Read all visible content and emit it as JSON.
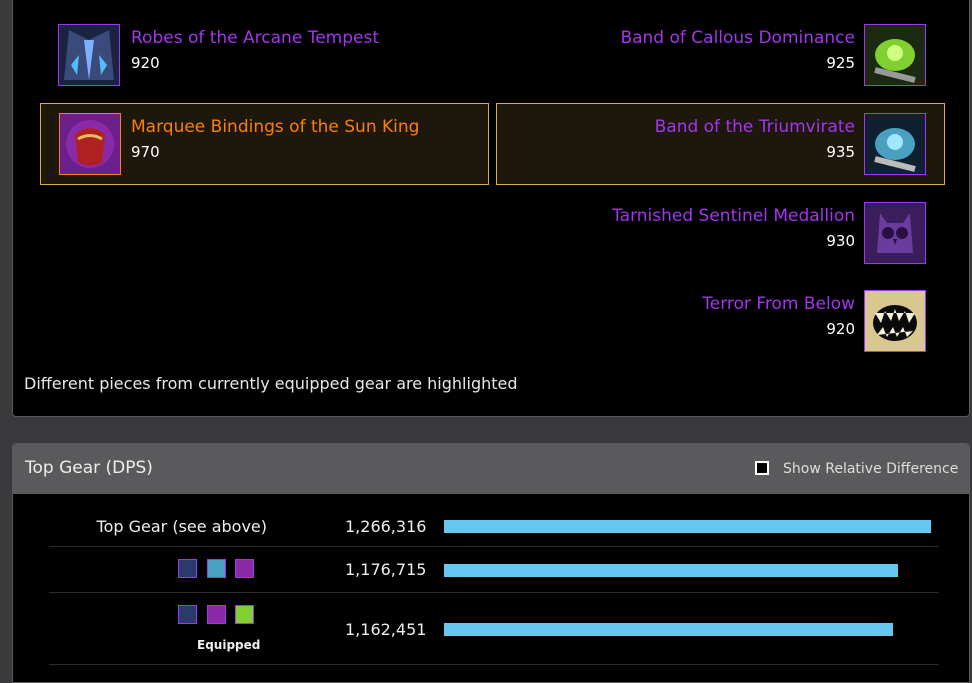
{
  "gear": {
    "items": [
      {
        "name": "Robes of the Arcane Tempest",
        "ilvl": "920",
        "quality": "epic"
      },
      {
        "name": "Band of Callous Dominance",
        "ilvl": "925",
        "quality": "epic"
      },
      {
        "name": "Marquee Bindings of the Sun King",
        "ilvl": "970",
        "quality": "legendary"
      },
      {
        "name": "Band of the Triumvirate",
        "ilvl": "935",
        "quality": "epic"
      },
      {
        "name": "Tarnished Sentinel Medallion",
        "ilvl": "930",
        "quality": "epic"
      },
      {
        "name": "Terror From Below",
        "ilvl": "920",
        "quality": "epic"
      }
    ],
    "note": "Different pieces from currently equipped gear are highlighted",
    "icons": [
      "robe-icon",
      "ring-icon",
      "bracer-icon",
      "ring-icon",
      "owl-trinket-icon",
      "maw-trinket-icon"
    ]
  },
  "top_gear": {
    "title": "Top Gear (DPS)",
    "checkbox_label": "Show Relative Difference",
    "checkbox_checked": false,
    "rows": [
      {
        "label": "Top Gear (see above)",
        "value": "1,266,316",
        "dps": 1266316
      },
      {
        "label": "",
        "value": "1,176,715",
        "dps": 1176715
      },
      {
        "label": "",
        "value": "1,162,451",
        "dps": 1162451,
        "sublabel": "Equipped"
      }
    ],
    "bar_color": "#66c8f0"
  },
  "colors": {
    "epic": "#a335ee",
    "legendary": "#ff8000",
    "highlight_border": "#e2a84b"
  }
}
